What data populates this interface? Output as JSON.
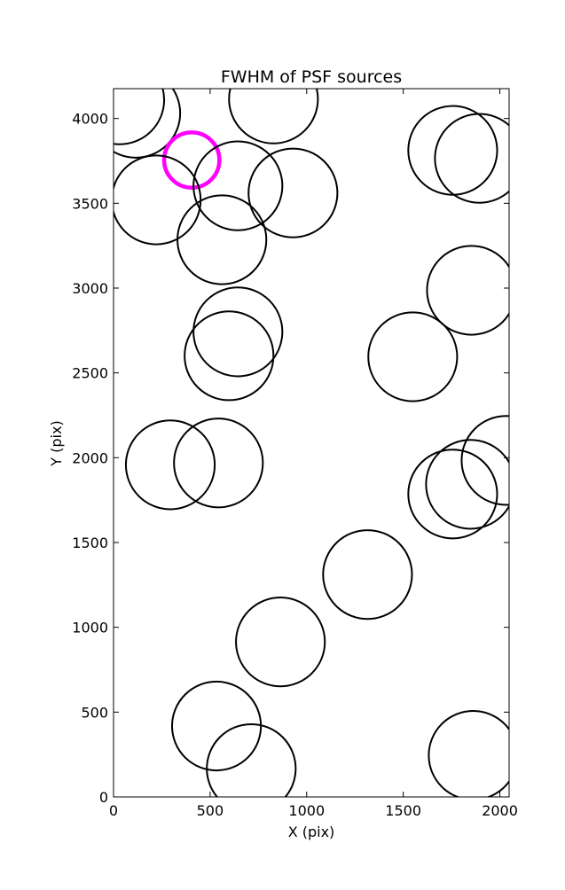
{
  "chart_data": {
    "type": "scatter",
    "title": "FWHM of PSF sources",
    "x_label": "X (pix)",
    "y_label": "Y (pix)",
    "x": [
      32,
      115,
      828,
      1756,
      1894,
      405,
      644,
      929,
      221,
      561,
      1853,
      644,
      598,
      1549,
      294,
      543,
      2032,
      1848,
      1756,
      1315,
      864,
      533,
      713,
      1862
    ],
    "y": [
      4110,
      4031,
      4115,
      3812,
      3765,
      3755,
      3603,
      3561,
      3520,
      3285,
      2987,
      2742,
      2601,
      2595,
      1958,
      1969,
      1984,
      1843,
      1786,
      1311,
      914,
      418,
      167,
      245
    ],
    "sizes": [
      230,
      230,
      230,
      230,
      230,
      143,
      230,
      230,
      230,
      230,
      230,
      230,
      230,
      230,
      230,
      230,
      230,
      230,
      230,
      230,
      230,
      230,
      230,
      230
    ],
    "colors": [
      "#000000",
      "#000000",
      "#000000",
      "#000000",
      "#000000",
      "#ff00ff",
      "#000000",
      "#000000",
      "#000000",
      "#000000",
      "#000000",
      "#000000",
      "#000000",
      "#000000",
      "#000000",
      "#000000",
      "#000000",
      "#000000",
      "#000000",
      "#000000",
      "#000000",
      "#000000",
      "#000000",
      "#000000"
    ],
    "xlim": [
      0,
      2048
    ],
    "ylim": [
      0,
      4176
    ],
    "xticks": [
      0,
      500,
      1000,
      1500,
      2000
    ],
    "yticks": [
      0,
      500,
      1000,
      1500,
      2000,
      2500,
      3000,
      3500,
      4000
    ]
  }
}
